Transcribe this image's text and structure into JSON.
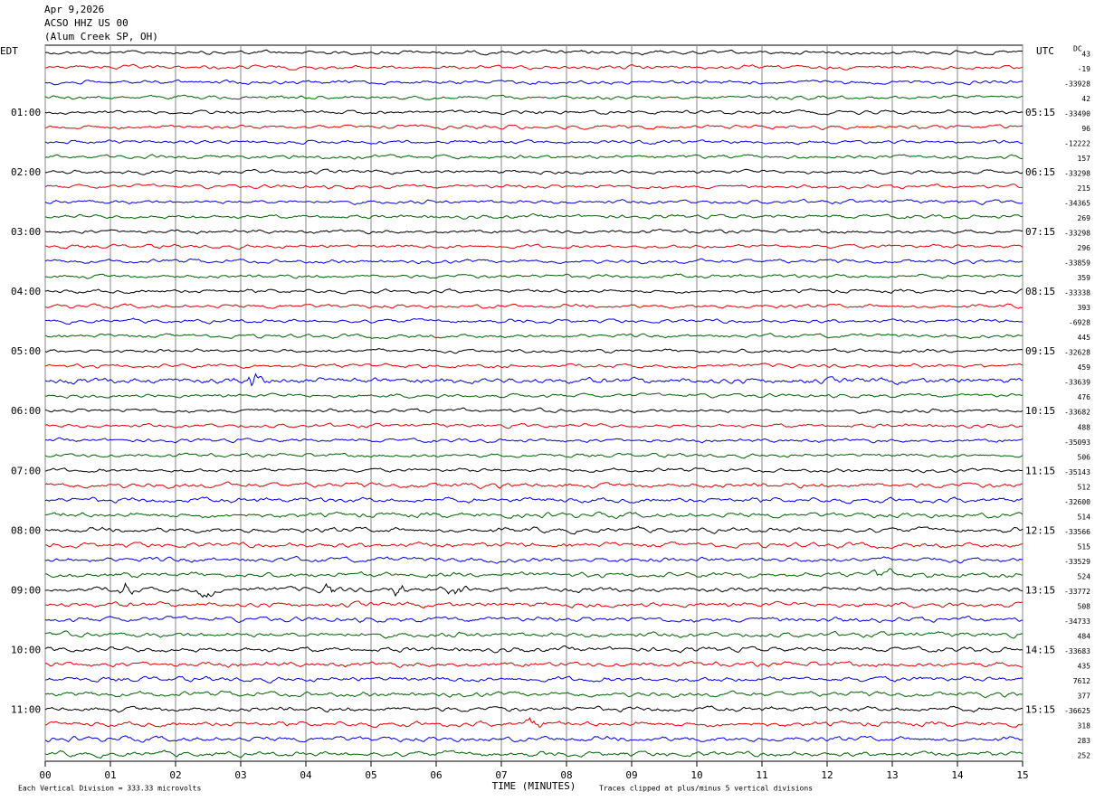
{
  "header": {
    "date": "Apr 9,2026",
    "station": "ACSO HHZ US 00",
    "location": "(Alum Creek SP, OH)"
  },
  "left_zone": "EDT",
  "right_zone": "UTC",
  "dc_label": "DC",
  "left_times": [
    "01:00",
    "02:00",
    "03:00",
    "04:00",
    "05:00",
    "06:00",
    "07:00",
    "08:00",
    "09:00",
    "10:00",
    "11:00"
  ],
  "right_times": [
    "05:15",
    "06:15",
    "07:15",
    "08:15",
    "09:15",
    "10:15",
    "11:15",
    "12:15",
    "13:15",
    "14:15",
    "15:15"
  ],
  "dc_values": [
    43,
    -19,
    -33928,
    42,
    -33490,
    96,
    -12222,
    157,
    -33298,
    215,
    -34365,
    269,
    -33298,
    296,
    -33859,
    359,
    -33338,
    393,
    -6928,
    445,
    -32628,
    459,
    -33639,
    476,
    -33682,
    488,
    -35093,
    506,
    -35143,
    512,
    -32600,
    514,
    -33566,
    515,
    -33529,
    524,
    -33772,
    508,
    -34733,
    484,
    -33683,
    435,
    7612,
    377,
    -36625,
    318,
    283,
    252
  ],
  "x_ticks": [
    "00",
    "01",
    "02",
    "03",
    "04",
    "05",
    "06",
    "07",
    "08",
    "09",
    "10",
    "11",
    "12",
    "13",
    "14",
    "15"
  ],
  "x_label": "TIME (MINUTES)",
  "scale_note": "Each Vertical Division =  333.33 microvolts",
  "clip_note": "Traces clipped at plus/minus 5 vertical divisions",
  "trace_colors": [
    "#000000",
    "#e00000",
    "#0000e0",
    "#006400"
  ]
}
